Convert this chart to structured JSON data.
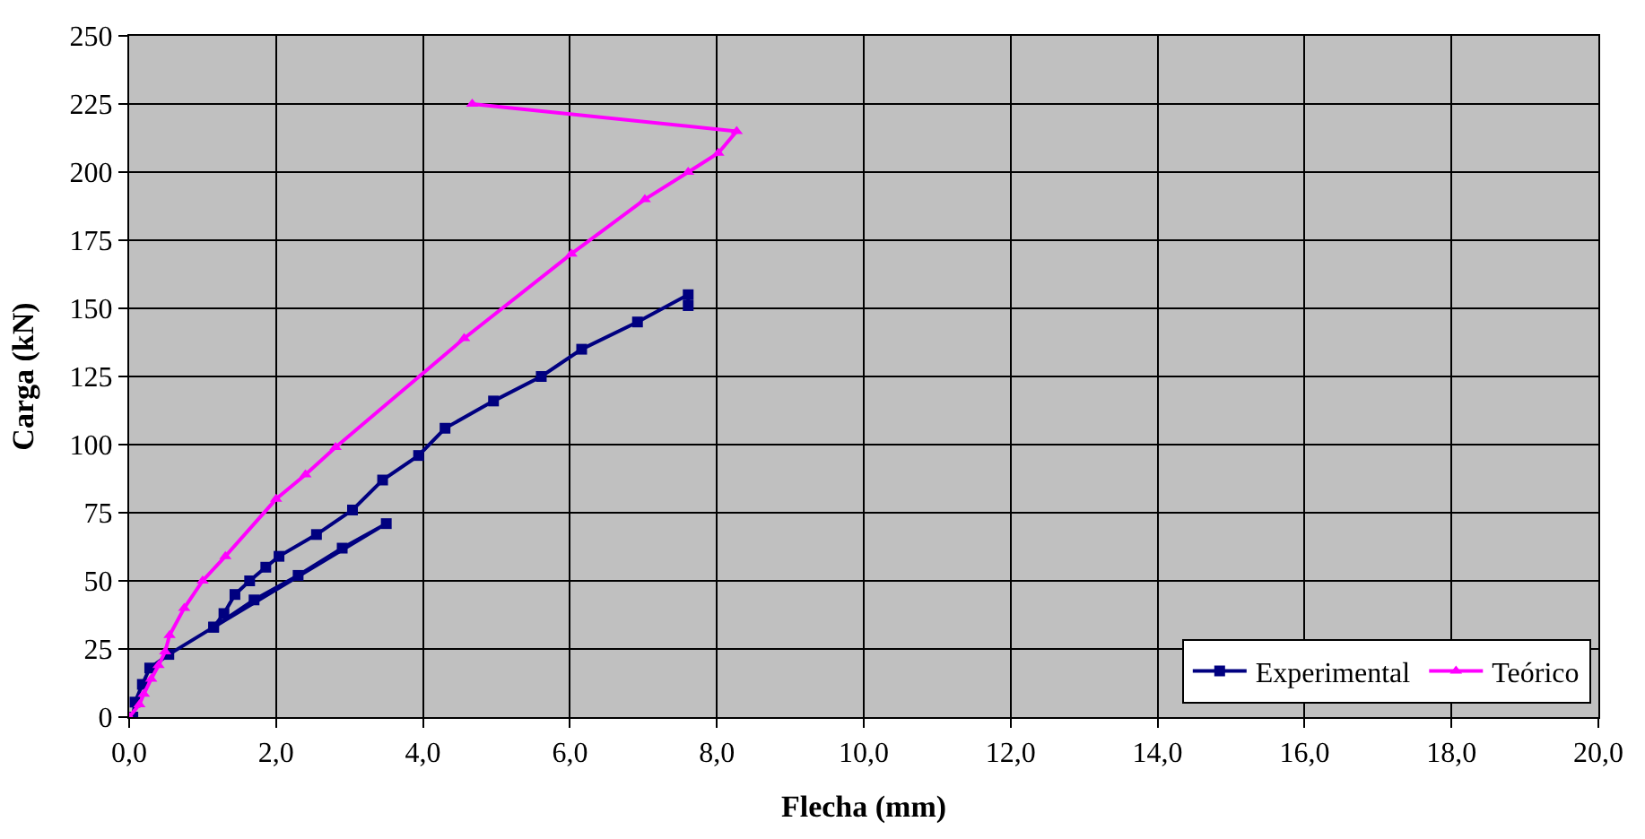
{
  "chart_data": {
    "type": "line",
    "xlabel": "Flecha (mm)",
    "ylabel": "Carga (kN)",
    "xlim": [
      0,
      20
    ],
    "ylim": [
      0,
      250
    ],
    "xticks": [
      {
        "value": 0,
        "label": "0,0"
      },
      {
        "value": 2,
        "label": "2,0"
      },
      {
        "value": 4,
        "label": "4,0"
      },
      {
        "value": 6,
        "label": "6,0"
      },
      {
        "value": 8,
        "label": "8,0"
      },
      {
        "value": 10,
        "label": "10,0"
      },
      {
        "value": 12,
        "label": "12,0"
      },
      {
        "value": 14,
        "label": "14,0"
      },
      {
        "value": 16,
        "label": "16,0"
      },
      {
        "value": 18,
        "label": "18,0"
      },
      {
        "value": 20,
        "label": "20,0"
      }
    ],
    "yticks": [
      0,
      25,
      50,
      75,
      100,
      125,
      150,
      175,
      200,
      225,
      250
    ],
    "grid": true,
    "legend": "bottom right",
    "series": [
      {
        "name": "Experimental",
        "color": "#000080",
        "marker": "square",
        "x": [
          0.05,
          0.08,
          0.18,
          0.28,
          0.54,
          1.15,
          1.7,
          2.3,
          2.9,
          3.5,
          1.15,
          1.29,
          1.44,
          1.64,
          1.86,
          2.04,
          2.55,
          3.04,
          3.45,
          3.94,
          4.3,
          4.96,
          5.61,
          6.16,
          6.92,
          7.61,
          7.61
        ],
        "values": [
          0,
          5.5,
          12,
          18,
          23,
          33,
          43,
          52,
          62,
          71,
          33,
          38,
          45,
          50,
          55,
          59,
          67,
          76,
          87,
          96,
          106,
          116,
          125,
          135,
          145,
          155,
          151
        ]
      },
      {
        "name": "Teórico",
        "color": "#ff00ff",
        "marker": "triangle",
        "x": [
          0,
          0.14,
          0.2,
          0.3,
          0.4,
          0.49,
          0.55,
          0.75,
          1.0,
          1.31,
          2.0,
          2.4,
          2.81,
          4.56,
          6.02,
          7.02,
          7.61,
          8.02,
          8.27,
          4.67
        ],
        "values": [
          0,
          4.6,
          8.5,
          14,
          19,
          24,
          30,
          40,
          50,
          59,
          80,
          89,
          99,
          139,
          170,
          190,
          200,
          207,
          215,
          225
        ]
      }
    ]
  }
}
